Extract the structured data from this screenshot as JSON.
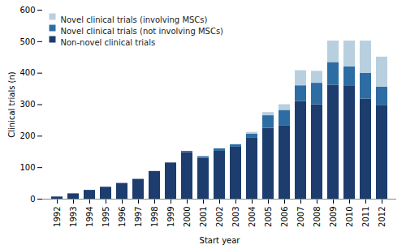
{
  "chart_data": {
    "type": "bar",
    "stacked": true,
    "xlabel": "Start year",
    "ylabel": "Clinical trials (n)",
    "categories": [
      "1992",
      "1993",
      "1994",
      "1995",
      "1996",
      "1997",
      "1998",
      "1999",
      "2000",
      "2001",
      "2002",
      "2003",
      "2004",
      "2005",
      "2006",
      "2007",
      "2008",
      "2009",
      "2010",
      "2011",
      "2012"
    ],
    "series": [
      {
        "name": "Non-novel clinical trials",
        "color": "#1c3d6e",
        "values": [
          7,
          17,
          28,
          38,
          50,
          63,
          88,
          115,
          148,
          130,
          152,
          165,
          195,
          225,
          232,
          310,
          300,
          362,
          358,
          318,
          298
        ]
      },
      {
        "name": "Novel clinical trials (not involving MSCs)",
        "color": "#2e6da4",
        "values": [
          0,
          0,
          0,
          0,
          0,
          0,
          0,
          0,
          4,
          5,
          8,
          8,
          12,
          40,
          50,
          50,
          68,
          72,
          62,
          82,
          58
        ]
      },
      {
        "name": "Novel clinical trials (involving MSCs)",
        "color": "#b8cfe0",
        "values": [
          0,
          0,
          0,
          0,
          0,
          0,
          0,
          0,
          0,
          0,
          0,
          0,
          5,
          10,
          18,
          48,
          38,
          68,
          82,
          102,
          95
        ]
      }
    ],
    "ylim": [
      0,
      600
    ],
    "yticks": [
      0,
      100,
      200,
      300,
      400,
      500,
      600
    ],
    "grid": false,
    "legend": "upper left"
  }
}
